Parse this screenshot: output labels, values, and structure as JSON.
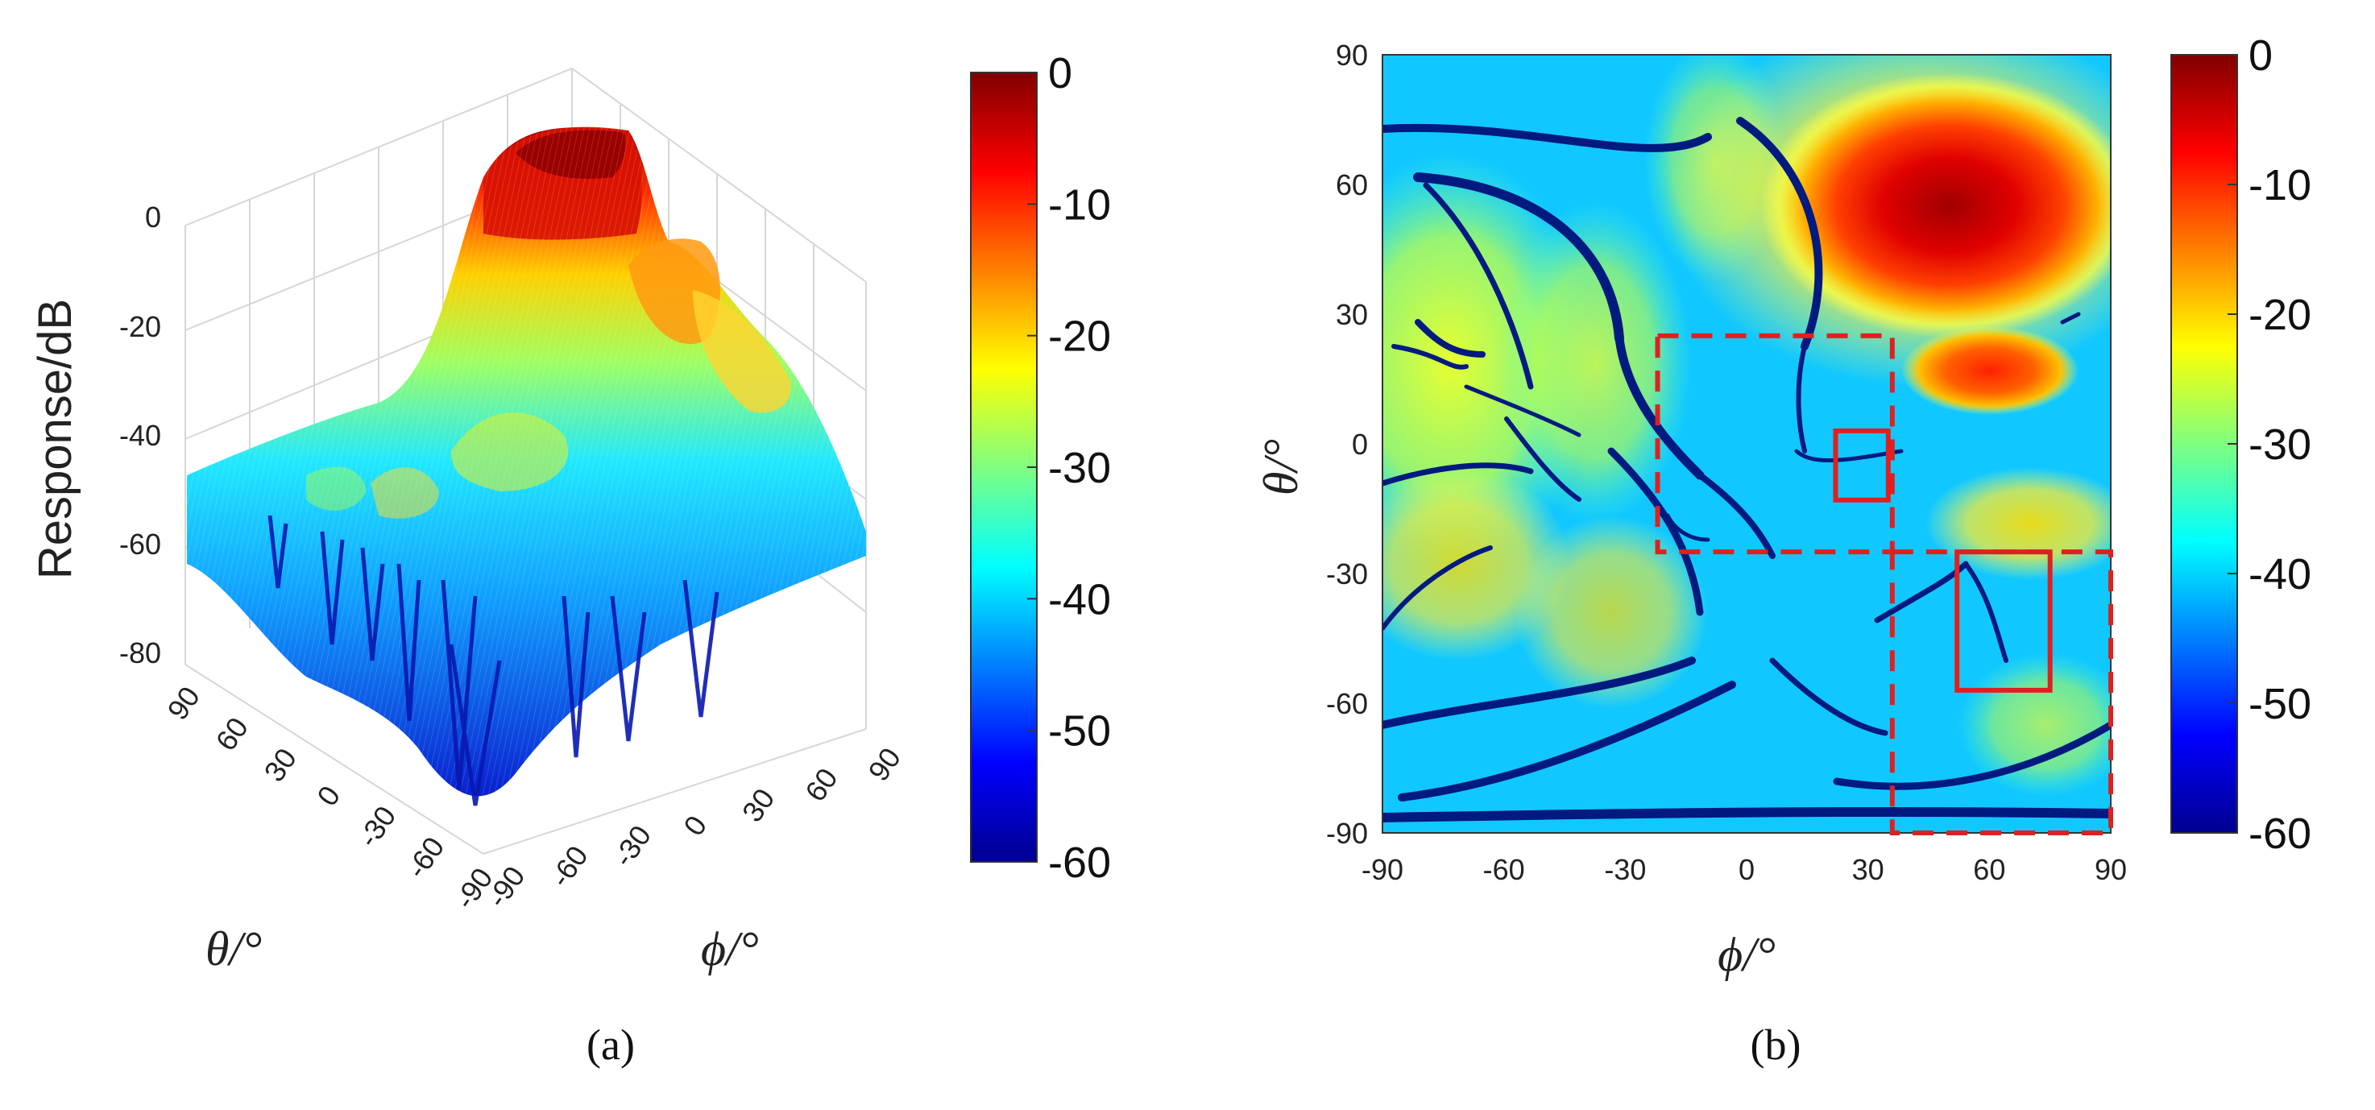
{
  "chart_data": [
    {
      "panel": "(a)",
      "type": "heatmap",
      "subtype": "3d-surface",
      "xlabel": "ϕ/°",
      "ylabel": "θ/°",
      "zlabel": "Response/dB",
      "x_ticks": [
        "-90",
        "-60",
        "-30",
        "0",
        "30",
        "60",
        "90"
      ],
      "y_ticks": [
        "90",
        "60",
        "30",
        "0",
        "-30",
        "-60",
        "-90"
      ],
      "z_ticks": [
        "0",
        "-20",
        "-40",
        "-60",
        "-80"
      ],
      "xlim": [
        -90,
        90
      ],
      "ylim": [
        -90,
        90
      ],
      "zlim": [
        -80,
        0
      ],
      "colormap": "jet",
      "colorbar": {
        "ticks": [
          "0",
          "-10",
          "-20",
          "-30",
          "-40",
          "-50",
          "-60"
        ],
        "range": [
          -60,
          0
        ]
      },
      "peak": {
        "phi": 45,
        "theta": 45,
        "value": 0
      },
      "secondary_lobe": {
        "phi": 60,
        "theta": 15,
        "value": -8
      },
      "floor_level": -45,
      "grid": true
    },
    {
      "panel": "(b)",
      "type": "heatmap",
      "xlabel": "ϕ/°",
      "ylabel": "θ/°",
      "x_ticks": [
        "-90",
        "-60",
        "-30",
        "0",
        "30",
        "60",
        "90"
      ],
      "y_ticks": [
        "90",
        "60",
        "30",
        "0",
        "-30",
        "-60",
        "-90"
      ],
      "xlim": [
        -90,
        90
      ],
      "ylim": [
        -90,
        90
      ],
      "colormap": "jet",
      "colorbar": {
        "ticks": [
          "0",
          "-10",
          "-20",
          "-30",
          "-40",
          "-50",
          "-60"
        ],
        "range": [
          -60,
          0
        ]
      },
      "hotspots": [
        {
          "phi": 45,
          "theta": 45,
          "value": 0
        },
        {
          "phi": 60,
          "theta": 15,
          "value": -8
        }
      ],
      "annotations": [
        {
          "style": "dashed",
          "color": "#e02020",
          "phi": [
            -22,
            36
          ],
          "theta": [
            -25,
            25
          ]
        },
        {
          "style": "dashed",
          "color": "#e02020",
          "phi": [
            36,
            90
          ],
          "theta": [
            -90,
            -25
          ]
        },
        {
          "style": "solid",
          "color": "#e02020",
          "phi": [
            22,
            35
          ],
          "theta": [
            -13,
            3
          ]
        },
        {
          "style": "solid",
          "color": "#e02020",
          "phi": [
            52,
            75
          ],
          "theta": [
            -57,
            -25
          ]
        }
      ]
    }
  ],
  "captions": {
    "a": "(a)",
    "b": "(b)"
  }
}
